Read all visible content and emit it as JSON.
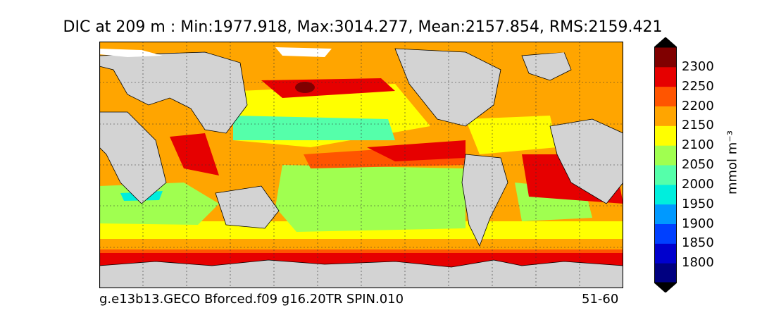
{
  "title": "DIC at 209 m : Min:1977.918, Max:3014.277, Mean:2157.854, RMS:2159.421",
  "footer": {
    "run_name": "g.e13b13.GECO Bforced.f09 g16.20TR SPIN.010",
    "years": "51-60"
  },
  "colorbar": {
    "units": "mmol m⁻³",
    "ticks": [
      "1800",
      "1850",
      "1900",
      "1950",
      "2000",
      "2050",
      "2100",
      "2150",
      "2200",
      "2250",
      "2300"
    ],
    "colors": [
      "#000080",
      "#0000cd",
      "#0040ff",
      "#0099ff",
      "#00eedd",
      "#55ffaa",
      "#a0ff50",
      "#ffff00",
      "#ffa500",
      "#ff5500",
      "#e60000",
      "#800000"
    ]
  },
  "map_colors": {
    "land": "#d3d3d3",
    "ice": "#ffffff",
    "ocean_base": "#ffa500"
  }
}
